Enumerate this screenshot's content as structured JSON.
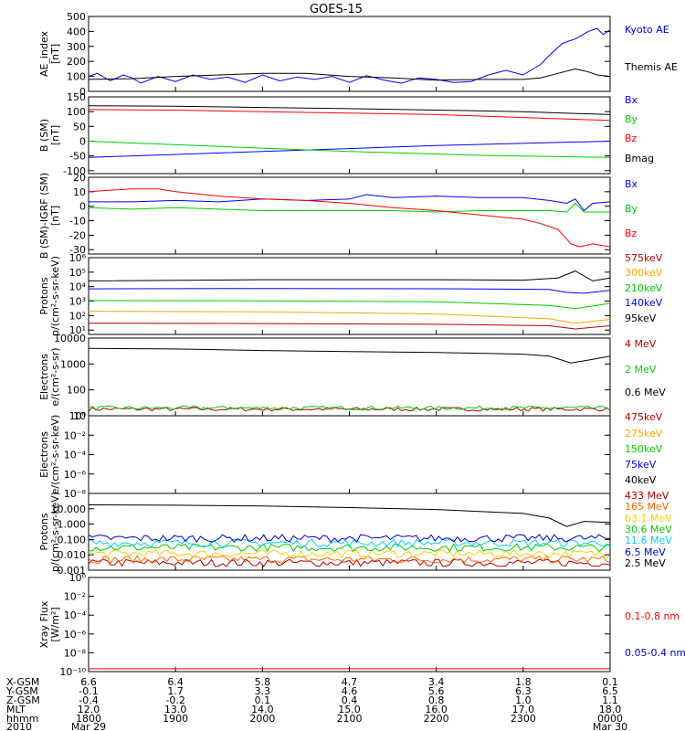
{
  "title": "GOES-15",
  "chart_data": [
    {
      "type": "line",
      "id": "ae",
      "ylabel": [
        "AE_index",
        "[nT]"
      ],
      "ylim": [
        0,
        500
      ],
      "yticks": [
        {
          "v": 0,
          "t": "0"
        },
        {
          "v": 100,
          "t": "100"
        },
        {
          "v": 200,
          "t": "200"
        },
        {
          "v": 300,
          "t": "300"
        },
        {
          "v": 400,
          "t": "400"
        },
        {
          "v": 500,
          "t": "500"
        }
      ],
      "series": [
        {
          "name": "Kyoto AE",
          "color": "#0000ff",
          "x": [
            0,
            0.1,
            0.25,
            0.4,
            0.5,
            0.6,
            0.8,
            1.0,
            1.2,
            1.4,
            1.6,
            1.8,
            2.0,
            2.2,
            2.4,
            2.6,
            2.8,
            3.0,
            3.2,
            3.4,
            3.6,
            3.8,
            4.0,
            4.2,
            4.4,
            4.6,
            4.8,
            5.0,
            5.2,
            5.3,
            5.45,
            5.6,
            5.75,
            5.85,
            5.92,
            6.0
          ],
          "y": [
            100,
            120,
            70,
            110,
            90,
            55,
            100,
            65,
            110,
            80,
            95,
            60,
            110,
            70,
            95,
            80,
            100,
            60,
            105,
            75,
            55,
            90,
            80,
            60,
            65,
            110,
            140,
            110,
            180,
            240,
            320,
            350,
            400,
            420,
            380,
            410
          ]
        },
        {
          "name": "Themis AE",
          "color": "#000000",
          "x": [
            0,
            0.5,
            1.0,
            1.5,
            2.0,
            2.5,
            3.0,
            3.5,
            4.0,
            4.5,
            5.0,
            5.2,
            5.4,
            5.6,
            5.75,
            5.85,
            6.0
          ],
          "y": [
            80,
            85,
            100,
            110,
            120,
            120,
            100,
            90,
            75,
            80,
            80,
            90,
            120,
            150,
            130,
            110,
            100
          ]
        }
      ]
    },
    {
      "type": "line",
      "id": "bsm",
      "ylabel": [
        "B (SM)",
        "[nT]"
      ],
      "ylim": [
        -110,
        150
      ],
      "yticks": [
        {
          "v": 150,
          "t": "150"
        },
        {
          "v": 100,
          "t": "100"
        },
        {
          "v": 50,
          "t": "50"
        },
        {
          "v": 0,
          "t": "0"
        },
        {
          "v": -50,
          "t": "-50"
        },
        {
          "v": -100,
          "t": "-100"
        }
      ],
      "series": [
        {
          "name": "Bx",
          "color": "#0000ff",
          "x": [
            0,
            2,
            4,
            6
          ],
          "y": [
            -55,
            -35,
            -15,
            0
          ]
        },
        {
          "name": "By",
          "color": "#00cc00",
          "x": [
            0,
            1.5,
            3,
            4.5,
            6
          ],
          "y": [
            0,
            -18,
            -35,
            -48,
            -55
          ]
        },
        {
          "name": "Bz",
          "color": "#ff0000",
          "x": [
            0,
            1,
            2,
            3,
            4,
            5,
            6
          ],
          "y": [
            107,
            105,
            100,
            95,
            90,
            80,
            70
          ]
        },
        {
          "name": "Bmag",
          "color": "#000000",
          "x": [
            0,
            1,
            2,
            3,
            4,
            5,
            6
          ],
          "y": [
            120,
            118,
            114,
            110,
            105,
            100,
            90
          ]
        }
      ]
    },
    {
      "type": "line",
      "id": "bigrf",
      "ylabel": [
        "B (SM)-IGRF (SM)",
        "[nT]"
      ],
      "ylim": [
        -33,
        20
      ],
      "yticks": [
        {
          "v": 20,
          "t": "20"
        },
        {
          "v": 10,
          "t": "10"
        },
        {
          "v": 0,
          "t": "0"
        },
        {
          "v": -10,
          "t": "-10"
        },
        {
          "v": -20,
          "t": "-20"
        },
        {
          "v": -30,
          "t": "-30"
        }
      ],
      "series": [
        {
          "name": "Bx",
          "color": "#0000ff",
          "x": [
            0,
            0.5,
            1.0,
            1.5,
            2.0,
            2.5,
            3.0,
            3.2,
            3.5,
            4.0,
            4.5,
            5.0,
            5.3,
            5.5,
            5.6,
            5.7,
            5.8,
            6.0
          ],
          "y": [
            3,
            3,
            4,
            3,
            5,
            4,
            5,
            8,
            6,
            7,
            6,
            6,
            4,
            2,
            5,
            -3,
            2,
            3
          ]
        },
        {
          "name": "By",
          "color": "#00cc00",
          "x": [
            0,
            0.5,
            1.0,
            1.5,
            2.0,
            2.5,
            3.0,
            3.5,
            4.0,
            4.5,
            5.0,
            5.3,
            5.5,
            5.6,
            5.7,
            5.8,
            6.0
          ],
          "y": [
            -1,
            -2,
            -1,
            -2,
            -3,
            -3,
            -3,
            -3,
            -4,
            -3,
            -3,
            -3,
            -4,
            2,
            -4,
            -4,
            -4
          ]
        },
        {
          "name": "Bz",
          "color": "#ff0000",
          "x": [
            0,
            0.5,
            0.8,
            1.0,
            1.5,
            2.0,
            2.5,
            3.0,
            3.5,
            4.0,
            4.5,
            5.0,
            5.2,
            5.4,
            5.55,
            5.65,
            5.8,
            6.0
          ],
          "y": [
            10,
            12,
            12,
            10,
            7,
            5,
            4,
            2,
            -1,
            -3,
            -6,
            -9,
            -12,
            -16,
            -26,
            -28,
            -26,
            -28
          ]
        }
      ]
    },
    {
      "type": "line",
      "id": "protons1",
      "ylabel": [
        "Protons",
        "p/(cm²-s-sr-keV)"
      ],
      "yscale": "log",
      "ylim": [
        5,
        1000000
      ],
      "yticks": [
        {
          "v": 10,
          "t": "10¹"
        },
        {
          "v": 100,
          "t": "10²"
        },
        {
          "v": 1000,
          "t": "10³"
        },
        {
          "v": 10000,
          "t": "10⁴"
        },
        {
          "v": 100000,
          "t": "10⁵"
        },
        {
          "v": 1000000,
          "t": "10⁶"
        }
      ],
      "series": [
        {
          "name": "575keV",
          "color": "#b00000",
          "x": [
            0,
            2,
            4,
            5.3,
            5.6,
            6
          ],
          "y": [
            30,
            28,
            25,
            20,
            12,
            20
          ]
        },
        {
          "name": "300keV",
          "color": "#ffa500",
          "x": [
            0,
            2,
            4,
            5.3,
            5.6,
            6
          ],
          "y": [
            200,
            180,
            130,
            60,
            30,
            55
          ]
        },
        {
          "name": "210keV",
          "color": "#00cc00",
          "x": [
            0,
            2,
            4,
            5.3,
            5.6,
            6
          ],
          "y": [
            1100,
            1050,
            900,
            500,
            300,
            700
          ]
        },
        {
          "name": "140keV",
          "color": "#0000ff",
          "x": [
            0,
            2,
            4,
            5.3,
            5.5,
            5.7,
            6
          ],
          "y": [
            7000,
            7500,
            7200,
            6500,
            4000,
            3500,
            5500
          ]
        },
        {
          "name": "95keV",
          "color": "#000000",
          "x": [
            0,
            2,
            4,
            5.0,
            5.4,
            5.6,
            5.8,
            6
          ],
          "y": [
            25000,
            30000,
            30000,
            28000,
            40000,
            120000,
            25000,
            40000
          ]
        }
      ]
    },
    {
      "type": "line",
      "id": "electrons1",
      "ylabel": [
        "Electrons",
        "e/(cm²-s-sr)"
      ],
      "yscale": "log",
      "ylim": [
        10,
        10000
      ],
      "yticks": [
        {
          "v": 10,
          "t": "10"
        },
        {
          "v": 100,
          "t": "100"
        },
        {
          "v": 1000,
          "t": "1000"
        },
        {
          "v": 10000,
          "t": "10000"
        }
      ],
      "series": [
        {
          "name": "4 MeV",
          "color": "#b00000",
          "x": [
            0,
            6
          ],
          "y": [
            18,
            18
          ]
        },
        {
          "name": "2 MeV",
          "color": "#00cc00",
          "x": [
            0,
            6
          ],
          "y": [
            20,
            20
          ]
        },
        {
          "name": "0.6 MeV",
          "color": "#000000",
          "x": [
            0,
            1,
            2,
            3,
            4,
            5,
            5.3,
            5.55,
            5.8,
            6
          ],
          "y": [
            4000,
            3800,
            3300,
            3000,
            2800,
            2400,
            2000,
            1100,
            1500,
            2000
          ]
        }
      ]
    },
    {
      "type": "line",
      "id": "electrons2",
      "ylabel": [
        "Electrons",
        "e/(cm²-s-sr-keV)"
      ],
      "yscale": "log",
      "ylim": [
        1e-08,
        1
      ],
      "yticks": [
        {
          "v": 1,
          "t": "10⁰"
        },
        {
          "v": 0.01,
          "t": "10⁻²"
        },
        {
          "v": 0.0001,
          "t": "10⁻⁴"
        },
        {
          "v": 1e-06,
          "t": "10⁻⁶"
        },
        {
          "v": 1e-08,
          "t": "10⁻⁸"
        }
      ],
      "series": [
        {
          "name": "475keV",
          "color": "#b00000",
          "x": [],
          "y": []
        },
        {
          "name": "275keV",
          "color": "#ffa500",
          "x": [],
          "y": []
        },
        {
          "name": "150keV",
          "color": "#00cc00",
          "x": [],
          "y": []
        },
        {
          "name": "75keV",
          "color": "#0000ff",
          "x": [],
          "y": []
        },
        {
          "name": "40keV",
          "color": "#000000",
          "x": [],
          "y": []
        }
      ]
    },
    {
      "type": "line",
      "id": "protons2",
      "ylabel": [
        "Protons",
        "p/(cm²-s-sr-keV)"
      ],
      "yscale": "log",
      "ylim": [
        0.001,
        100
      ],
      "yticks": [
        {
          "v": 10,
          "t": "10.000"
        },
        {
          "v": 1,
          "t": "1.000"
        },
        {
          "v": 0.1,
          "t": "0.100"
        },
        {
          "v": 0.01,
          "t": "0.010"
        },
        {
          "v": 0.001,
          "t": "0.001"
        }
      ],
      "series": [
        {
          "name": "433 MeV",
          "color": "#b00000",
          "x": [
            0,
            6
          ],
          "y": [
            0.003,
            0.003
          ]
        },
        {
          "name": "165 MeV",
          "color": "#ff6600",
          "x": [
            0,
            6
          ],
          "y": [
            0.005,
            0.005
          ]
        },
        {
          "name": "63.1 MeV",
          "color": "#ffcc00",
          "x": [
            0,
            6
          ],
          "y": [
            0.012,
            0.012
          ]
        },
        {
          "name": "30.6 MeV",
          "color": "#00cc00",
          "x": [
            0,
            6
          ],
          "y": [
            0.03,
            0.03
          ]
        },
        {
          "name": "11.6 MeV",
          "color": "#00ccff",
          "x": [
            0,
            6
          ],
          "y": [
            0.06,
            0.06
          ]
        },
        {
          "name": "6.5 MeV",
          "color": "#0000cc",
          "x": [
            0,
            6
          ],
          "y": [
            0.12,
            0.12
          ]
        },
        {
          "name": "2.5 MeV",
          "color": "#000000",
          "x": [
            0,
            1,
            2,
            3,
            4,
            5,
            5.3,
            5.5,
            5.7,
            6
          ],
          "y": [
            18,
            17,
            15,
            12,
            9,
            5,
            2.5,
            0.7,
            1.5,
            1.3
          ]
        }
      ]
    },
    {
      "type": "line",
      "id": "xray",
      "ylabel": [
        "Xray Flux",
        "[W/m²]"
      ],
      "yscale": "log",
      "ylim": [
        1e-10,
        1
      ],
      "yticks": [
        {
          "v": 1,
          "t": "10⁰"
        },
        {
          "v": 0.01,
          "t": "10⁻²"
        },
        {
          "v": 0.0001,
          "t": "10⁻⁴"
        },
        {
          "v": 1e-06,
          "t": "10⁻⁶"
        },
        {
          "v": 1e-08,
          "t": "10⁻⁸"
        },
        {
          "v": 1e-10,
          "t": "10⁻¹⁰"
        }
      ],
      "series": [
        {
          "name": "0.1-0.8 nm",
          "color": "#ff0000",
          "x": [
            0,
            6
          ],
          "y": [
            2e-10,
            2e-10
          ]
        },
        {
          "name": "0.05-0.4 nm",
          "color": "#0000cc",
          "x": [],
          "y": []
        }
      ]
    }
  ],
  "xaxis": {
    "range": [
      0,
      6
    ],
    "rows": [
      {
        "label": "X-GSM",
        "values": [
          "6.6",
          "6.4",
          "5.8",
          "4.7",
          "3.4",
          "1.8",
          "0.1"
        ]
      },
      {
        "label": "Y-GSM",
        "values": [
          "-0.1",
          "1.7",
          "3.3",
          "4.6",
          "5.6",
          "6.3",
          "6.5"
        ]
      },
      {
        "label": "Z-GSM",
        "values": [
          "-0.4",
          "-0.2",
          "0.1",
          "0.4",
          "0.8",
          "1.0",
          "1.1"
        ]
      },
      {
        "label": "MLT",
        "values": [
          "12.0",
          "13.0",
          "14.0",
          "15.0",
          "16.0",
          "17.0",
          "18.0"
        ]
      },
      {
        "label": "hhmm",
        "values": [
          "1800",
          "1900",
          "2000",
          "2100",
          "2200",
          "2300",
          "0000"
        ]
      },
      {
        "label": "2010",
        "values": [
          "Mar 29",
          "",
          "",
          "",
          "",
          "",
          "Mar 30"
        ]
      }
    ]
  }
}
